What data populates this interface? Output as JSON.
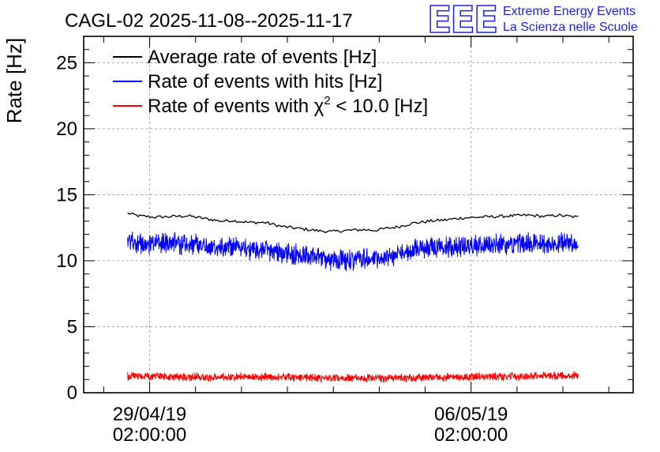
{
  "chart_data": {
    "type": "line",
    "title": "CAGL-02 2025-11-08--2025-11-17",
    "xlabel": "",
    "ylabel": "Rate [Hz]",
    "ylim": [
      0,
      27
    ],
    "yticks": [
      0,
      5,
      10,
      15,
      20,
      25
    ],
    "ytick_labels": [
      "0",
      "5",
      "10",
      "15",
      "20",
      "25"
    ],
    "xlim": [
      0,
      1
    ],
    "xticks": [
      {
        "position": 0.12,
        "date": "29/04/19",
        "time": "02:00:00"
      },
      {
        "position": 0.705,
        "date": "06/05/19",
        "time": "02:00:00"
      }
    ],
    "grid": true,
    "legend_position": "top-left",
    "series": [
      {
        "name": "Average rate of events [Hz]",
        "color": "#000000",
        "x": [
          0.08,
          0.1,
          0.13,
          0.16,
          0.19,
          0.22,
          0.25,
          0.27,
          0.3,
          0.33,
          0.36,
          0.39,
          0.42,
          0.45,
          0.48,
          0.51,
          0.53,
          0.55,
          0.57,
          0.6,
          0.63,
          0.66,
          0.69,
          0.72,
          0.75,
          0.78,
          0.81,
          0.84,
          0.86,
          0.9
        ],
        "y": [
          13.6,
          13.4,
          13.3,
          13.35,
          13.4,
          13.2,
          13.0,
          13.05,
          12.9,
          12.9,
          12.6,
          12.45,
          12.3,
          12.2,
          12.3,
          12.35,
          12.3,
          12.45,
          12.55,
          12.85,
          13.0,
          13.1,
          13.25,
          13.3,
          13.35,
          13.4,
          13.45,
          13.35,
          13.45,
          13.3
        ]
      },
      {
        "name": "Rate of events with hits [Hz]",
        "color": "#0000ff",
        "x": [
          0.08,
          0.1,
          0.13,
          0.16,
          0.19,
          0.22,
          0.25,
          0.27,
          0.3,
          0.33,
          0.36,
          0.39,
          0.42,
          0.45,
          0.48,
          0.51,
          0.53,
          0.55,
          0.57,
          0.6,
          0.63,
          0.66,
          0.69,
          0.72,
          0.75,
          0.78,
          0.81,
          0.84,
          0.86,
          0.9
        ],
        "y": [
          11.5,
          11.3,
          11.2,
          11.3,
          11.3,
          11.1,
          11.0,
          11.0,
          10.9,
          10.85,
          10.6,
          10.4,
          10.3,
          10.1,
          10.05,
          10.2,
          10.15,
          10.3,
          10.5,
          10.8,
          11.0,
          11.05,
          11.1,
          11.2,
          11.25,
          11.3,
          11.35,
          11.25,
          11.4,
          11.3
        ],
        "spread": 1.4
      },
      {
        "name": "Rate of events with χ² < 10.0 [Hz]",
        "legend_prefix": "Rate of events with χ",
        "legend_superscript": "2",
        "legend_suffix": " < 10.0 [Hz]",
        "color": "#ff0000",
        "x": [
          0.08,
          0.2,
          0.3,
          0.4,
          0.5,
          0.6,
          0.7,
          0.8,
          0.9
        ],
        "y": [
          1.25,
          1.2,
          1.2,
          1.15,
          1.1,
          1.15,
          1.2,
          1.25,
          1.3
        ],
        "spread": 0.55
      }
    ]
  },
  "logo": {
    "mark": "EEE",
    "line1": "Extreme Energy Events",
    "line2": "La Scienza nelle Scuole",
    "color": "#1f1fe6"
  }
}
